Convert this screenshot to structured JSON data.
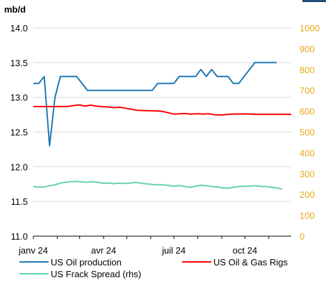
{
  "colors": {
    "oil_production": "#1f77b4",
    "rigs": "#ff0000",
    "frack": "#66d4a6",
    "right_axis_text": "#e6a817",
    "grid": "#d9d9d9",
    "top_right_mark": "#1f4e79"
  },
  "chart_data": {
    "type": "line",
    "units_label": "mb/d",
    "x_tick_labels": [
      "janv 24",
      "avr 24",
      "juil 24",
      "oct 24"
    ],
    "x_tick_dates": [
      "2024-01-01",
      "2024-04-01",
      "2024-07-01",
      "2024-10-01"
    ],
    "x_range": [
      "2024-01-01",
      "2024-11-30"
    ],
    "y_left": {
      "range": [
        11.0,
        14.0
      ],
      "ticks": [
        "11.0",
        "11.5",
        "12.0",
        "12.5",
        "13.0",
        "13.5",
        "14.0"
      ]
    },
    "y_right": {
      "range": [
        0,
        1000
      ],
      "ticks": [
        "0",
        "100",
        "200",
        "300",
        "400",
        "500",
        "600",
        "700",
        "800",
        "900",
        "1000"
      ]
    },
    "grid": "horizontal",
    "legend_position": "bottom",
    "series": [
      {
        "name": "US Oil production",
        "axis": "left",
        "points": [
          [
            "2024-01-01",
            13.2
          ],
          [
            "2024-01-08",
            13.2
          ],
          [
            "2024-01-15",
            13.3
          ],
          [
            "2024-01-22",
            12.3
          ],
          [
            "2024-01-29",
            13.0
          ],
          [
            "2024-02-05",
            13.3
          ],
          [
            "2024-02-12",
            13.3
          ],
          [
            "2024-02-19",
            13.3
          ],
          [
            "2024-02-26",
            13.3
          ],
          [
            "2024-03-04",
            13.2
          ],
          [
            "2024-03-11",
            13.1
          ],
          [
            "2024-03-18",
            13.1
          ],
          [
            "2024-03-25",
            13.1
          ],
          [
            "2024-04-01",
            13.1
          ],
          [
            "2024-04-08",
            13.1
          ],
          [
            "2024-04-15",
            13.1
          ],
          [
            "2024-04-22",
            13.1
          ],
          [
            "2024-04-29",
            13.1
          ],
          [
            "2024-05-06",
            13.1
          ],
          [
            "2024-05-13",
            13.1
          ],
          [
            "2024-05-20",
            13.1
          ],
          [
            "2024-05-27",
            13.1
          ],
          [
            "2024-06-03",
            13.1
          ],
          [
            "2024-06-10",
            13.2
          ],
          [
            "2024-06-17",
            13.2
          ],
          [
            "2024-06-24",
            13.2
          ],
          [
            "2024-07-01",
            13.2
          ],
          [
            "2024-07-08",
            13.3
          ],
          [
            "2024-07-15",
            13.3
          ],
          [
            "2024-07-22",
            13.3
          ],
          [
            "2024-07-29",
            13.3
          ],
          [
            "2024-08-05",
            13.4
          ],
          [
            "2024-08-12",
            13.3
          ],
          [
            "2024-08-19",
            13.4
          ],
          [
            "2024-08-26",
            13.3
          ],
          [
            "2024-09-02",
            13.3
          ],
          [
            "2024-09-09",
            13.3
          ],
          [
            "2024-09-16",
            13.2
          ],
          [
            "2024-09-23",
            13.2
          ],
          [
            "2024-09-30",
            13.3
          ],
          [
            "2024-10-07",
            13.4
          ],
          [
            "2024-10-14",
            13.5
          ],
          [
            "2024-10-21",
            13.5
          ],
          [
            "2024-10-28",
            13.5
          ],
          [
            "2024-11-04",
            13.5
          ],
          [
            "2024-11-11",
            13.5
          ]
        ]
      },
      {
        "name": "US Oil & Gas Rigs",
        "axis": "right",
        "points": [
          [
            "2024-01-01",
            622
          ],
          [
            "2024-01-15",
            622
          ],
          [
            "2024-02-01",
            622
          ],
          [
            "2024-02-15",
            623
          ],
          [
            "2024-02-22",
            627
          ],
          [
            "2024-03-01",
            630
          ],
          [
            "2024-03-08",
            624
          ],
          [
            "2024-03-15",
            629
          ],
          [
            "2024-03-22",
            624
          ],
          [
            "2024-04-01",
            621
          ],
          [
            "2024-04-08",
            620
          ],
          [
            "2024-04-15",
            617
          ],
          [
            "2024-04-22",
            619
          ],
          [
            "2024-05-01",
            613
          ],
          [
            "2024-05-15",
            604
          ],
          [
            "2024-06-01",
            602
          ],
          [
            "2024-06-15",
            600
          ],
          [
            "2024-07-01",
            586
          ],
          [
            "2024-07-15",
            589
          ],
          [
            "2024-07-22",
            586
          ],
          [
            "2024-08-01",
            588
          ],
          [
            "2024-08-08",
            586
          ],
          [
            "2024-08-15",
            588
          ],
          [
            "2024-08-22",
            583
          ],
          [
            "2024-09-01",
            582
          ],
          [
            "2024-09-15",
            586
          ],
          [
            "2024-10-01",
            587
          ],
          [
            "2024-10-15",
            585
          ],
          [
            "2024-11-01",
            585
          ],
          [
            "2024-11-15",
            585
          ],
          [
            "2024-11-30",
            585
          ]
        ]
      },
      {
        "name": "US Frack Spread (rhs)",
        "axis": "right",
        "points": [
          [
            "2024-01-01",
            238
          ],
          [
            "2024-01-08",
            235
          ],
          [
            "2024-01-15",
            236
          ],
          [
            "2024-01-22",
            242
          ],
          [
            "2024-01-29",
            246
          ],
          [
            "2024-02-05",
            255
          ],
          [
            "2024-02-12",
            259
          ],
          [
            "2024-02-19",
            262
          ],
          [
            "2024-02-26",
            263
          ],
          [
            "2024-03-04",
            260
          ],
          [
            "2024-03-11",
            259
          ],
          [
            "2024-03-18",
            262
          ],
          [
            "2024-03-25",
            258
          ],
          [
            "2024-04-01",
            254
          ],
          [
            "2024-04-08",
            255
          ],
          [
            "2024-04-15",
            252
          ],
          [
            "2024-04-22",
            255
          ],
          [
            "2024-04-29",
            253
          ],
          [
            "2024-05-06",
            255
          ],
          [
            "2024-05-13",
            258
          ],
          [
            "2024-05-20",
            254
          ],
          [
            "2024-05-27",
            251
          ],
          [
            "2024-06-03",
            248
          ],
          [
            "2024-06-10",
            246
          ],
          [
            "2024-06-17",
            247
          ],
          [
            "2024-06-24",
            243
          ],
          [
            "2024-07-01",
            240
          ],
          [
            "2024-07-08",
            243
          ],
          [
            "2024-07-15",
            238
          ],
          [
            "2024-07-22",
            234
          ],
          [
            "2024-07-29",
            240
          ],
          [
            "2024-08-05",
            244
          ],
          [
            "2024-08-12",
            242
          ],
          [
            "2024-08-19",
            238
          ],
          [
            "2024-08-26",
            236
          ],
          [
            "2024-09-02",
            232
          ],
          [
            "2024-09-09",
            230
          ],
          [
            "2024-09-16",
            234
          ],
          [
            "2024-09-23",
            238
          ],
          [
            "2024-09-30",
            240
          ],
          [
            "2024-10-07",
            240
          ],
          [
            "2024-10-14",
            242
          ],
          [
            "2024-10-21",
            239
          ],
          [
            "2024-10-28",
            238
          ],
          [
            "2024-11-04",
            235
          ],
          [
            "2024-11-11",
            232
          ],
          [
            "2024-11-18",
            226
          ]
        ]
      }
    ]
  }
}
